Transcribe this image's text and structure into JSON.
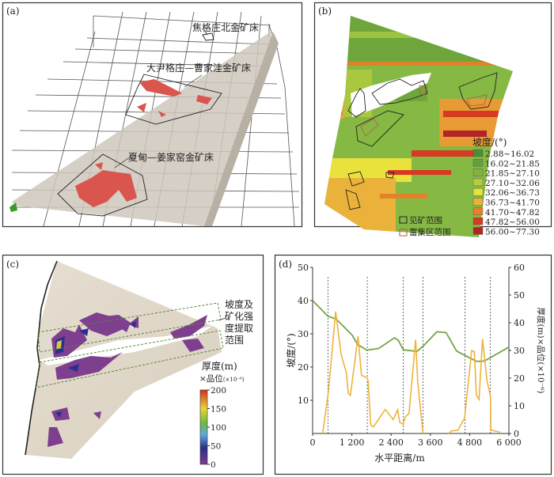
{
  "panels": {
    "a": {
      "label": "(a)",
      "deposits": [
        "焦格庄北金矿床",
        "大尹格庄—曹家洼金矿床",
        "夏甸—姜家窑金矿床"
      ]
    },
    "b": {
      "label": "(b)",
      "legend_title": "坡度/(°)",
      "legend": [
        {
          "range": "2.88~16.02",
          "color": "#4e8c36"
        },
        {
          "range": "16.02~21.85",
          "color": "#64a03a"
        },
        {
          "range": "21.85~27.10",
          "color": "#80b43e"
        },
        {
          "range": "27.10~32.06",
          "color": "#b4cd3a"
        },
        {
          "range": "32.06~36.73",
          "color": "#e9e23c"
        },
        {
          "range": "36.73~41.70",
          "color": "#eab23a"
        },
        {
          "range": "41.70~47.82",
          "color": "#e2822a"
        },
        {
          "range": "47.82~56.00",
          "color": "#d63a22"
        },
        {
          "range": "56.00~77.30",
          "color": "#b32424"
        }
      ],
      "outline_legend": [
        "见矿范围",
        "富集区范围"
      ]
    },
    "c": {
      "label": "(c)",
      "annotation": [
        "坡度及",
        "矿化强",
        "度提取",
        "范围"
      ],
      "colorbar_title_1": "厚度(m)",
      "colorbar_title_2": "×品位",
      "colorbar_unit": "(×10⁻⁶)",
      "colorbar_ticks": [
        "200",
        "150",
        "100",
        "50",
        "0"
      ]
    },
    "d": {
      "label": "(d)"
    }
  },
  "chart_data": {
    "type": "line",
    "xlabel": "水平距离/m",
    "ylabel": "坡度/(°)",
    "y2label": "厚度(m)×品位(×10⁻⁶)",
    "xlim": [
      0,
      6000
    ],
    "ylim": [
      0,
      50
    ],
    "y2lim": [
      0,
      60
    ],
    "xticks": [
      0,
      1200,
      2400,
      3600,
      4800,
      6000
    ],
    "xtick_labels": [
      "0",
      "1 200",
      "2 400",
      "3 600",
      "4 800",
      "6 000"
    ],
    "yticks": [
      "10",
      "20",
      "30",
      "40",
      "50"
    ],
    "y2ticks": [
      "0",
      "10",
      "20",
      "30",
      "40",
      "50",
      "60"
    ],
    "vlines": [
      468,
      1672,
      2770,
      3375,
      4660,
      5435
    ],
    "series": [
      {
        "name": "坡度",
        "axis": "left",
        "color": "#74a548",
        "x": [
          0,
          470,
          727,
          1211,
          1373,
          1655,
          2019,
          2503,
          2624,
          2770,
          3190,
          3392,
          3796,
          4079,
          4402,
          5007,
          5249,
          6000
        ],
        "y": [
          40,
          35.3,
          34.4,
          29.6,
          26.8,
          25.1,
          25.6,
          28.8,
          28,
          25.2,
          24.7,
          26.4,
          30.6,
          30.4,
          24.8,
          21.7,
          21.8,
          26
        ]
      },
      {
        "name": "厚度×品位",
        "axis": "right",
        "color": "#f0b23a",
        "segments": [
          {
            "x": [
              307,
              485,
              703,
              872,
              1034,
              1090,
              1155,
              1389,
              1494,
              1655,
              1696,
              1777,
              1858,
              2221,
              2463,
              2600,
              2665,
              2770,
              2826,
              2947,
              3149,
              3214,
              3375
            ],
            "y": [
              0,
              15.3,
              44,
              28.5,
              21.9,
              14.4,
              13.8,
              35.1,
              21,
              20.2,
              19.1,
              3.1,
              2.4,
              8.7,
              5,
              8.6,
              4,
              3.3,
              5.9,
              7.3,
              33.9,
              18.6,
              0
            ]
          },
          {
            "x": [
              4160,
              4241,
              4442,
              4644,
              4862,
              4943,
              5007,
              5088,
              5193,
              5330,
              5435,
              5451,
              5733
            ],
            "y": [
              0,
              0.9,
              1.2,
              5.5,
              29.9,
              29.6,
              13.9,
              12.3,
              34.1,
              19.1,
              13.5,
              1.2,
              0.5
            ]
          }
        ]
      }
    ]
  }
}
